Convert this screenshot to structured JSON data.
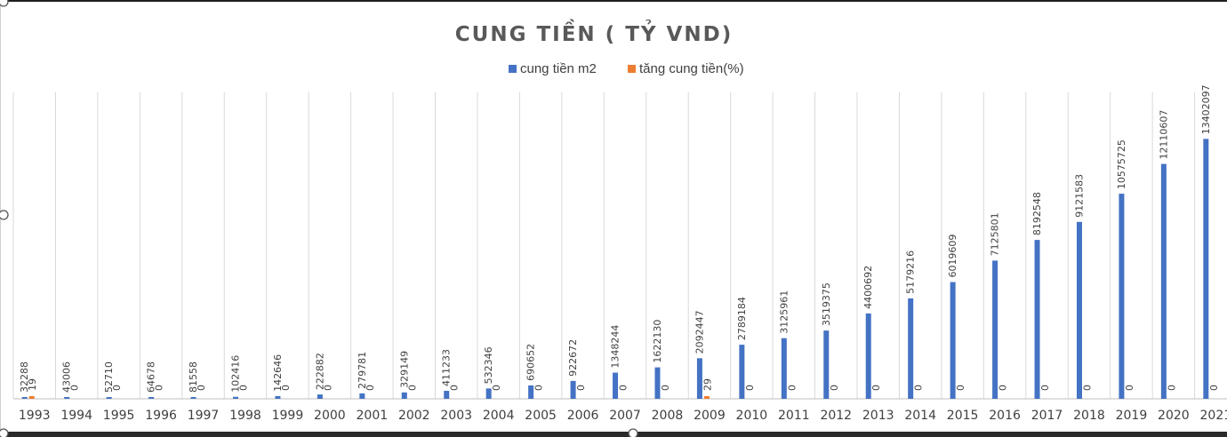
{
  "chart_data": {
    "type": "bar",
    "title": "CUNG TIỀN ( TỶ VND)",
    "legend_position": "top",
    "grid": true,
    "categories": [
      "1993",
      "1994",
      "1995",
      "1996",
      "1997",
      "1998",
      "1999",
      "2000",
      "2001",
      "2002",
      "2003",
      "2004",
      "2005",
      "2006",
      "2007",
      "2008",
      "2009",
      "2010",
      "2011",
      "2012",
      "2013",
      "2014",
      "2015",
      "2016",
      "2017",
      "2018",
      "2019",
      "2020",
      "2021"
    ],
    "ylim": [
      0,
      15800000
    ],
    "series": [
      {
        "name": "cung tiền m2",
        "color": "#4472c4",
        "values": [
          32288,
          43006,
          52710,
          64678,
          81558,
          102416,
          142646,
          222882,
          279781,
          329149,
          411233,
          532346,
          690652,
          922672,
          1348244,
          1622130,
          2092447,
          2789184,
          3125961,
          3519375,
          4400692,
          5179216,
          6019609,
          7125801,
          8192548,
          9121583,
          10575725,
          12110607,
          13402097
        ]
      },
      {
        "name": "tăng cung tiền(%)",
        "color": "#ed7d31",
        "values": [
          19,
          0,
          0,
          0,
          0,
          0,
          0,
          0,
          0,
          0,
          0,
          0,
          0,
          0,
          0,
          0,
          29,
          0,
          0,
          0,
          0,
          0,
          0,
          0,
          0,
          0,
          0,
          0,
          0
        ]
      }
    ]
  }
}
